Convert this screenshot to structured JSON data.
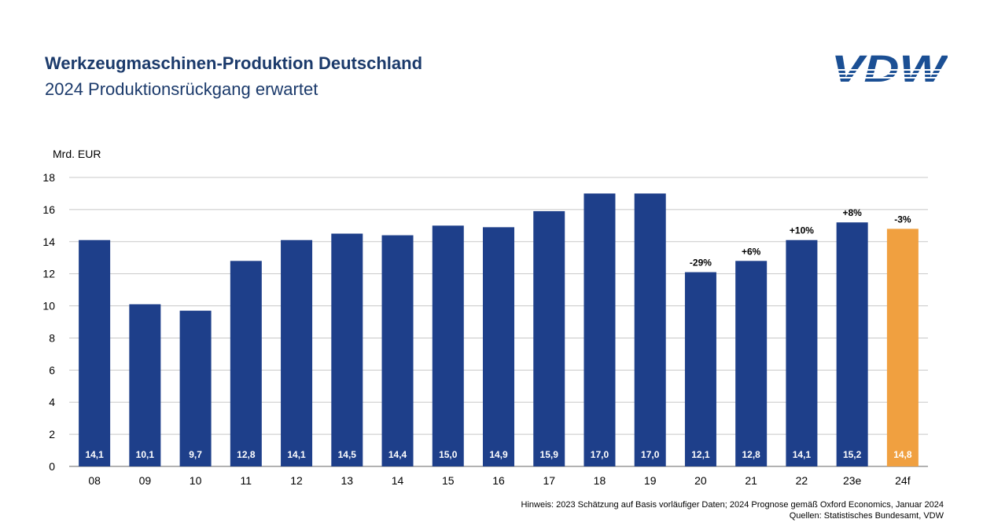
{
  "header": {
    "title": "Werkzeugmaschinen-Produktion Deutschland",
    "subtitle": "2024 Produktionsrückgang erwartet",
    "logo_text": "VDW"
  },
  "chart_data": {
    "type": "bar",
    "ylabel": "Mrd. EUR",
    "ylim": [
      0,
      18
    ],
    "yticks": [
      0,
      2,
      4,
      6,
      8,
      10,
      12,
      14,
      16,
      18
    ],
    "grid": true,
    "categories": [
      "08",
      "09",
      "10",
      "11",
      "12",
      "13",
      "14",
      "15",
      "16",
      "17",
      "18",
      "19",
      "20",
      "21",
      "22",
      "23e",
      "24f"
    ],
    "values": [
      14.1,
      10.1,
      9.7,
      12.8,
      14.1,
      14.5,
      14.4,
      15.0,
      14.9,
      15.9,
      17.0,
      17.0,
      12.1,
      12.8,
      14.1,
      15.2,
      14.8
    ],
    "value_labels": [
      "14,1",
      "10,1",
      "9,7",
      "12,8",
      "14,1",
      "14,5",
      "14,4",
      "15,0",
      "14,9",
      "15,9",
      "17,0",
      "17,0",
      "12,1",
      "12,8",
      "14,1",
      "15,2",
      "14,8"
    ],
    "annotations": [
      "",
      "",
      "",
      "",
      "",
      "",
      "",
      "",
      "",
      "",
      "",
      "",
      "-29%",
      "+6%",
      "+10%",
      "+8%",
      "-3%"
    ],
    "colors": {
      "actual": "#1e3f8a",
      "forecast": "#f0a040"
    },
    "forecast_index": 16
  },
  "footer": {
    "note": "Hinweis: 2023 Schätzung auf Basis vorläufiger Daten; 2024 Prognose gemäß Oxford Economics, Januar 2024",
    "sources": "Quellen: Statistisches Bundesamt, VDW"
  }
}
